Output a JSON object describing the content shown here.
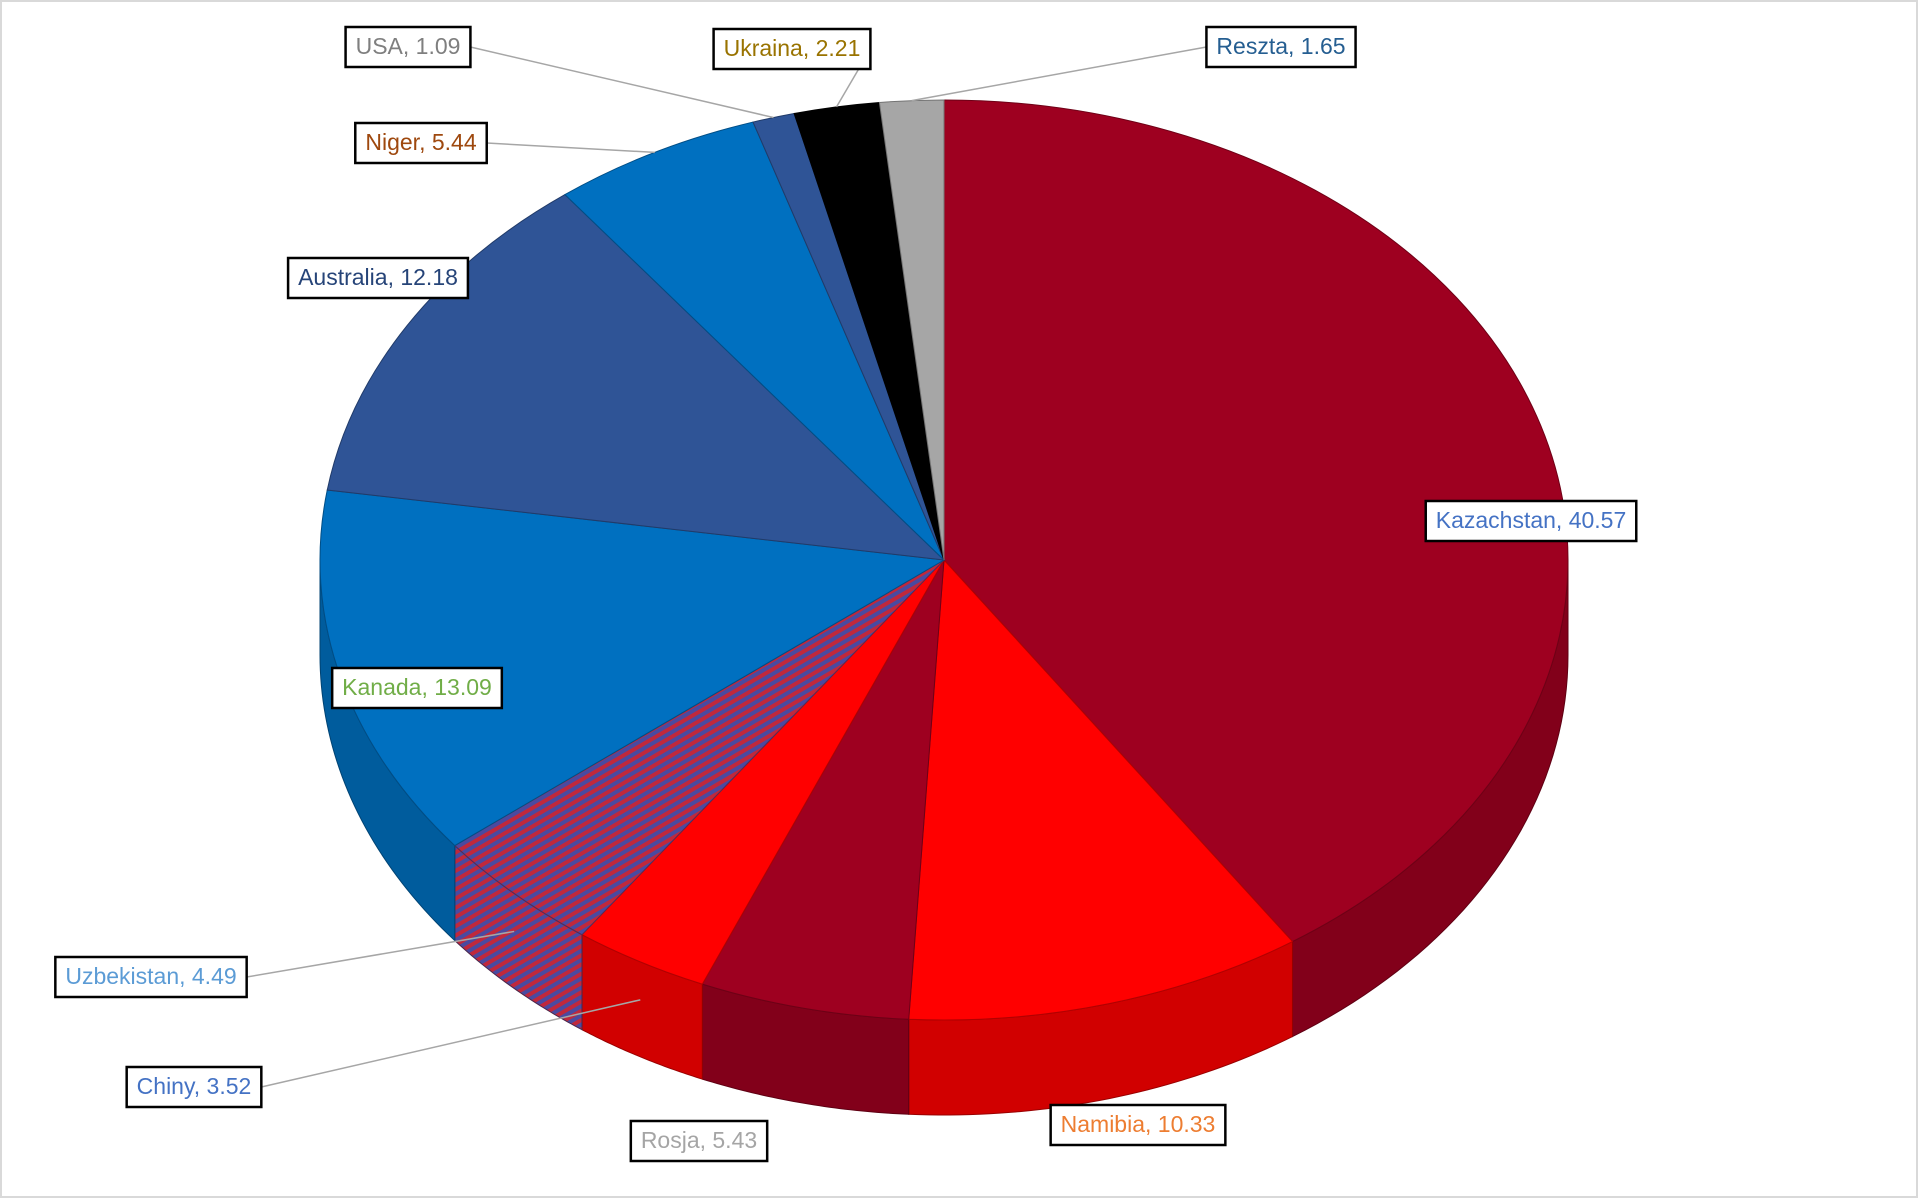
{
  "chart_data": {
    "type": "pie3d",
    "values": [
      40.57,
      10.33,
      5.43,
      3.52,
      4.49,
      13.09,
      12.18,
      5.44,
      1.09,
      2.21,
      1.65
    ],
    "value_labels": [
      "Kazachstan, 40.57",
      "Namibia, 10.33",
      "Rosja, 5.43",
      "Chiny, 3.52",
      "Uzbekistan, 4.49",
      "Kanada, 13.09",
      "Australia, 12.18",
      "Niger, 5.44",
      "USA, 1.09",
      "Ukraina, 2.21",
      "Reszta, 1.65"
    ],
    "colors": [
      "#9e0020",
      "#ff0000",
      "#9e0020",
      "#ff0000",
      "#7a3f7c",
      "#0070c0",
      "#2f5496",
      "#0070c0",
      "#2f5496",
      "#000000",
      "#a6a6a6"
    ],
    "label_colors": [
      "#4472c4",
      "#ed7d31",
      "#a5a5a5",
      "#4472c4",
      "#5b9bd5",
      "#70ad47",
      "#264478",
      "#9e480e",
      "#7f7f7f",
      "#997300",
      "#255e91"
    ],
    "hatched_slices": [
      4
    ]
  }
}
